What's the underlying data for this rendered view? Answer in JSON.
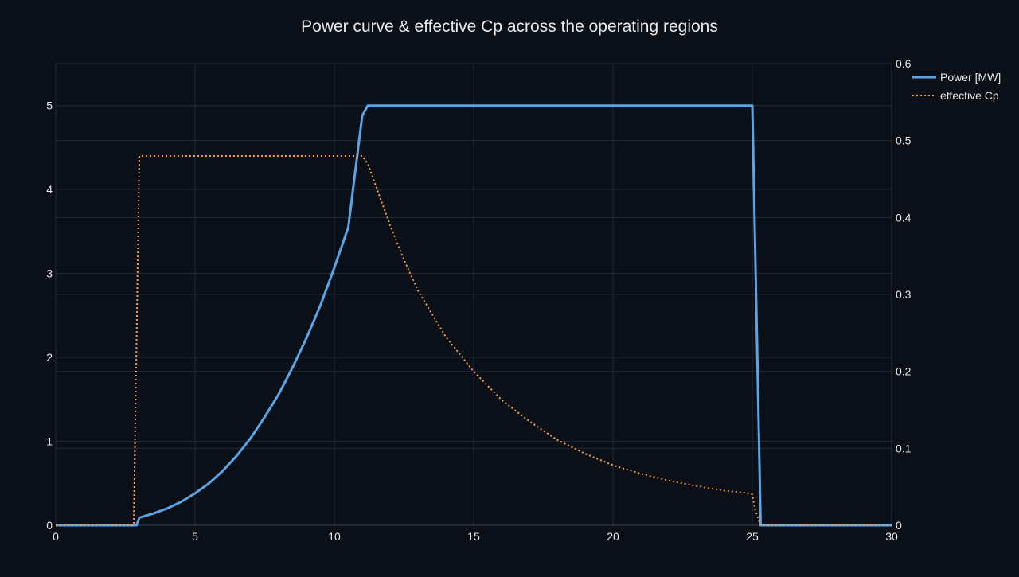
{
  "chart_data": {
    "type": "line",
    "title": "Power curve & effective Cp across the operating regions",
    "xlabel": "",
    "ylabel": "",
    "y2label": "",
    "xlim": [
      0,
      30
    ],
    "ylim": [
      0,
      5.5
    ],
    "y2lim": [
      0,
      0.6
    ],
    "x_ticks": [
      0,
      5,
      10,
      15,
      20,
      25,
      30
    ],
    "y_ticks": [
      0,
      1,
      2,
      3,
      4,
      5
    ],
    "y2_ticks": [
      0,
      0.1,
      0.2,
      0.3,
      0.4,
      0.5,
      0.6
    ],
    "y2_tick_labels": [
      "0",
      "0.1",
      "0.2",
      "0.3",
      "0.4",
      "0.5",
      "0.6"
    ],
    "grid": true,
    "legend": "top-right",
    "series": [
      {
        "name": "Power [MW]",
        "axis": "y",
        "style": "solid",
        "color": "#5aa5e6",
        "x": [
          0,
          2.9,
          3.0,
          3.5,
          4,
          4.5,
          5,
          5.5,
          6,
          6.5,
          7,
          7.5,
          8,
          8.5,
          9,
          9.5,
          10,
          10.5,
          11,
          11.2,
          12,
          14,
          16,
          18,
          20,
          22,
          24,
          25,
          25.3,
          26,
          28,
          30
        ],
        "y": [
          0,
          0,
          0.09,
          0.14,
          0.2,
          0.28,
          0.38,
          0.5,
          0.65,
          0.83,
          1.04,
          1.29,
          1.56,
          1.88,
          2.23,
          2.62,
          3.07,
          3.55,
          4.88,
          5.0,
          5.0,
          5.0,
          5.0,
          5.0,
          5.0,
          5.0,
          5.0,
          5.0,
          0,
          0,
          0,
          0
        ]
      },
      {
        "name": "effective Cp",
        "axis": "y2",
        "style": "dotted",
        "color": "#f0a04b",
        "x": [
          0,
          2.8,
          3.0,
          5,
          7,
          9,
          10.5,
          11.0,
          11.2,
          11.5,
          12,
          12.5,
          13,
          14,
          15,
          16,
          17,
          18,
          19,
          20,
          21,
          22,
          23,
          24,
          24.8,
          25.0,
          25.1,
          25.3,
          26,
          28,
          30
        ],
        "y": [
          0,
          0,
          0.48,
          0.48,
          0.48,
          0.48,
          0.48,
          0.48,
          0.47,
          0.44,
          0.39,
          0.345,
          0.305,
          0.245,
          0.2,
          0.163,
          0.135,
          0.111,
          0.093,
          0.078,
          0.067,
          0.058,
          0.051,
          0.045,
          0.042,
          0.04,
          0.02,
          0,
          0,
          0,
          0
        ]
      }
    ]
  }
}
